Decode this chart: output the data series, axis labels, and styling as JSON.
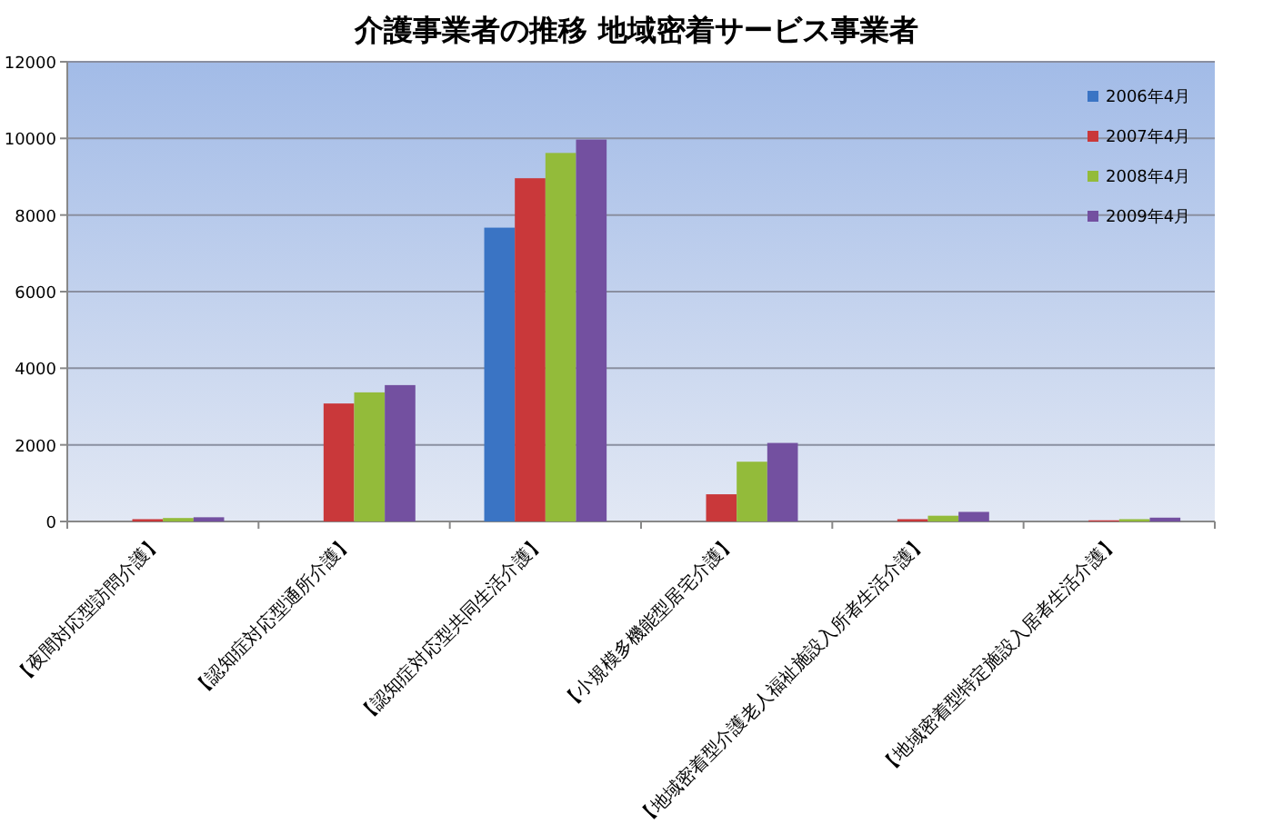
{
  "chart_data": {
    "type": "bar",
    "title": "介護事業者の推移  地域密着サービス事業者",
    "categories": [
      "【夜間対応型訪問介護】",
      "【認知症対応型通所介護】",
      "【認知症対応型共同生活介護】",
      "【小規模多機能型居宅介護】",
      "【地域密着型介護老人福祉施設入所者生活介護】",
      "【地域密着型特定施設入居者生活介護】"
    ],
    "series": [
      {
        "name": "2006年4月",
        "color": "#3a74c4",
        "values": [
          null,
          null,
          7670,
          null,
          null,
          null
        ]
      },
      {
        "name": "2007年4月",
        "color": "#c9383a",
        "values": [
          60,
          3080,
          8960,
          710,
          60,
          30
        ]
      },
      {
        "name": "2008年4月",
        "color": "#93bb3a",
        "values": [
          90,
          3370,
          9620,
          1560,
          150,
          60
        ]
      },
      {
        "name": "2009年4月",
        "color": "#7350a0",
        "values": [
          110,
          3560,
          9970,
          2050,
          250,
          100
        ]
      }
    ],
    "ylim": [
      0,
      12000
    ],
    "yticks": [
      0,
      2000,
      4000,
      6000,
      8000,
      10000,
      12000
    ],
    "grid": "y",
    "legend": "top right"
  }
}
